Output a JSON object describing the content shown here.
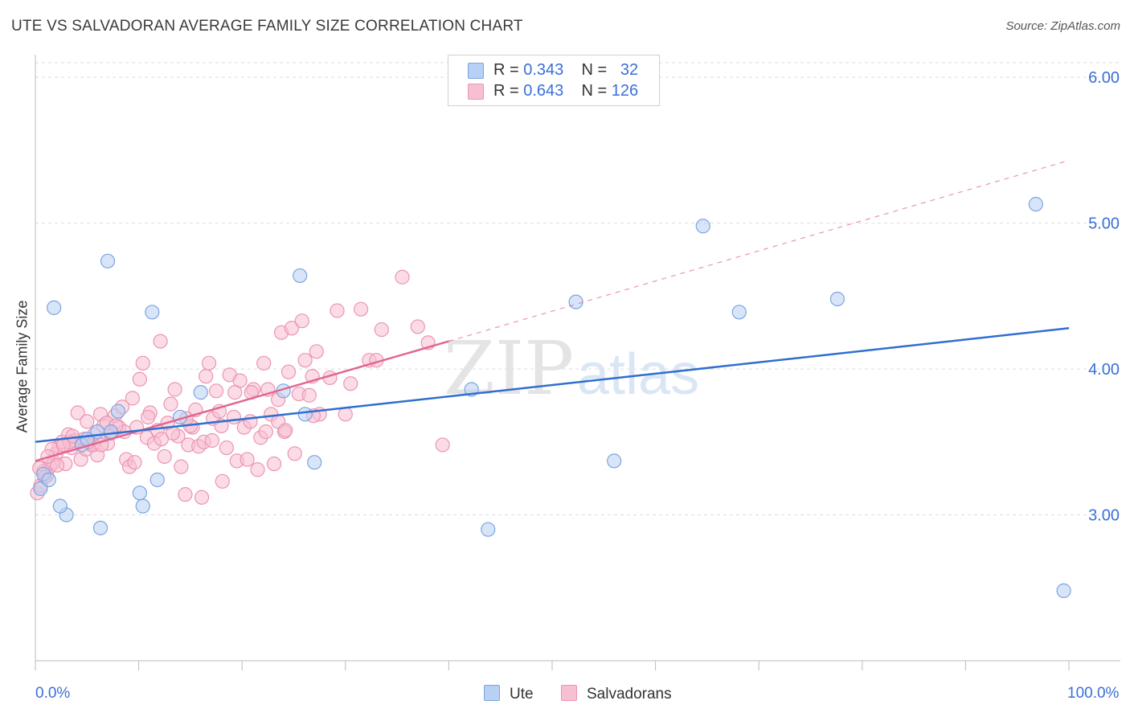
{
  "title": "UTE VS SALVADORAN AVERAGE FAMILY SIZE CORRELATION CHART",
  "source": "Source: ZipAtlas.com",
  "watermark": "ZIPatlas",
  "legend": {
    "rows": [
      {
        "r_label": "R =",
        "r_value": "0.343",
        "n_label": "N =",
        "n_value": "32"
      },
      {
        "r_label": "R =",
        "r_value": "0.643",
        "n_label": "N =",
        "n_value": "126"
      }
    ]
  },
  "colors": {
    "ute_fill": "#b8d0f4",
    "ute_stroke": "#7aa5e0",
    "ute_line": "#2f6fce",
    "salv_fill": "#f7c0d2",
    "salv_stroke": "#ec94b3",
    "salv_line": "#e0678f",
    "tick_label": "#3a6fd8",
    "grid": "#dddddd"
  },
  "chart_data": {
    "type": "scatter",
    "title": "UTE VS SALVADORAN AVERAGE FAMILY SIZE CORRELATION CHART",
    "xlabel": "",
    "ylabel": "Average Family Size",
    "x_tick_labels": [
      "0.0%",
      "100.0%"
    ],
    "y_ticks": [
      3.0,
      4.0,
      5.0,
      6.0
    ],
    "y_tick_labels": [
      "3.00",
      "4.00",
      "5.00",
      "6.00"
    ],
    "xlim": [
      0,
      100
    ],
    "ylim": [
      2.0,
      6.1
    ],
    "legend_placement": "top-center",
    "series": [
      {
        "name": "Ute",
        "trend": {
          "x": [
            0,
            100
          ],
          "y": [
            3.5,
            4.28
          ]
        },
        "points": [
          [
            1.8,
            4.42
          ],
          [
            7,
            4.74
          ],
          [
            11.3,
            4.39
          ],
          [
            25.6,
            4.64
          ],
          [
            3,
            3.0
          ],
          [
            2.4,
            3.06
          ],
          [
            6.3,
            2.91
          ],
          [
            10.4,
            3.06
          ],
          [
            10.1,
            3.15
          ],
          [
            11.8,
            3.24
          ],
          [
            7.3,
            3.57
          ],
          [
            6,
            3.57
          ],
          [
            8,
            3.71
          ],
          [
            14,
            3.67
          ],
          [
            16,
            3.84
          ],
          [
            24,
            3.85
          ],
          [
            26.1,
            3.69
          ],
          [
            27,
            3.36
          ],
          [
            42.2,
            3.86
          ],
          [
            43.8,
            2.9
          ],
          [
            52.3,
            4.46
          ],
          [
            56,
            3.37
          ],
          [
            64.6,
            4.98
          ],
          [
            68.1,
            4.39
          ],
          [
            77.6,
            4.48
          ],
          [
            96.8,
            5.13
          ],
          [
            99.5,
            2.48
          ],
          [
            0.5,
            3.18
          ],
          [
            0.8,
            3.28
          ],
          [
            1.3,
            3.24
          ],
          [
            4.5,
            3.48
          ],
          [
            5,
            3.52
          ]
        ]
      },
      {
        "name": "Salvadorans",
        "trend": {
          "x": [
            0,
            40
          ],
          "y": [
            3.37,
            4.19
          ]
        },
        "trend_ext": {
          "x": [
            40,
            100
          ],
          "y": [
            4.19,
            5.43
          ]
        },
        "points": [
          [
            0.2,
            3.15
          ],
          [
            0.5,
            3.2
          ],
          [
            0.8,
            3.3
          ],
          [
            1.1,
            3.27
          ],
          [
            1.4,
            3.33
          ],
          [
            1.8,
            3.36
          ],
          [
            2,
            3.42
          ],
          [
            2.3,
            3.47
          ],
          [
            2.6,
            3.5
          ],
          [
            2.9,
            3.35
          ],
          [
            3.2,
            3.55
          ],
          [
            3.5,
            3.46
          ],
          [
            3.8,
            3.51
          ],
          [
            4.1,
            3.7
          ],
          [
            4.4,
            3.38
          ],
          [
            4.7,
            3.52
          ],
          [
            5,
            3.64
          ],
          [
            5.4,
            3.48
          ],
          [
            5.7,
            3.55
          ],
          [
            6,
            3.41
          ],
          [
            6.3,
            3.69
          ],
          [
            6.6,
            3.61
          ],
          [
            7,
            3.49
          ],
          [
            7.3,
            3.56
          ],
          [
            7.7,
            3.68
          ],
          [
            8.1,
            3.6
          ],
          [
            8.4,
            3.74
          ],
          [
            8.8,
            3.38
          ],
          [
            9.1,
            3.33
          ],
          [
            9.4,
            3.8
          ],
          [
            9.8,
            3.6
          ],
          [
            10.1,
            3.93
          ],
          [
            10.4,
            4.04
          ],
          [
            10.8,
            3.53
          ],
          [
            11.1,
            3.7
          ],
          [
            11.5,
            3.49
          ],
          [
            11.8,
            3.58
          ],
          [
            12.1,
            4.19
          ],
          [
            12.5,
            3.4
          ],
          [
            12.8,
            3.63
          ],
          [
            13.1,
            3.76
          ],
          [
            13.5,
            3.86
          ],
          [
            13.8,
            3.54
          ],
          [
            14.1,
            3.33
          ],
          [
            14.5,
            3.14
          ],
          [
            14.8,
            3.48
          ],
          [
            15.2,
            3.6
          ],
          [
            15.5,
            3.72
          ],
          [
            15.8,
            3.47
          ],
          [
            16.1,
            3.12
          ],
          [
            16.5,
            3.95
          ],
          [
            16.8,
            4.04
          ],
          [
            17.2,
            3.66
          ],
          [
            17.5,
            3.85
          ],
          [
            17.8,
            3.71
          ],
          [
            18.1,
            3.23
          ],
          [
            18.5,
            3.46
          ],
          [
            18.8,
            3.96
          ],
          [
            19.2,
            3.67
          ],
          [
            19.5,
            3.37
          ],
          [
            19.8,
            3.92
          ],
          [
            20.2,
            3.6
          ],
          [
            20.5,
            3.38
          ],
          [
            20.8,
            3.64
          ],
          [
            21.1,
            3.86
          ],
          [
            21.5,
            3.31
          ],
          [
            21.8,
            3.53
          ],
          [
            22.1,
            4.04
          ],
          [
            22.5,
            3.86
          ],
          [
            22.8,
            3.69
          ],
          [
            23.1,
            3.35
          ],
          [
            23.5,
            3.79
          ],
          [
            23.8,
            4.25
          ],
          [
            24.1,
            3.57
          ],
          [
            24.5,
            3.98
          ],
          [
            24.8,
            4.28
          ],
          [
            25.1,
            3.42
          ],
          [
            25.5,
            3.83
          ],
          [
            25.8,
            4.33
          ],
          [
            26.1,
            4.06
          ],
          [
            26.5,
            3.82
          ],
          [
            26.8,
            3.95
          ],
          [
            27.2,
            4.12
          ],
          [
            27.5,
            3.69
          ],
          [
            28.5,
            3.94
          ],
          [
            29.2,
            4.4
          ],
          [
            30,
            3.69
          ],
          [
            30.5,
            3.9
          ],
          [
            31.5,
            4.41
          ],
          [
            32.3,
            4.06
          ],
          [
            33,
            4.06
          ],
          [
            33.5,
            4.27
          ],
          [
            35.5,
            4.63
          ],
          [
            37,
            4.29
          ],
          [
            38,
            4.18
          ],
          [
            39.4,
            3.48
          ],
          [
            0.4,
            3.32
          ],
          [
            0.9,
            3.26
          ],
          [
            1.6,
            3.45
          ],
          [
            2.1,
            3.34
          ],
          [
            3.3,
            3.5
          ],
          [
            4.9,
            3.45
          ],
          [
            5.6,
            3.48
          ],
          [
            6.9,
            3.63
          ],
          [
            8.6,
            3.57
          ],
          [
            10.9,
            3.67
          ],
          [
            13.3,
            3.56
          ],
          [
            15,
            3.61
          ],
          [
            16.3,
            3.5
          ],
          [
            18,
            3.61
          ],
          [
            19.3,
            3.84
          ],
          [
            20.9,
            3.84
          ],
          [
            22.3,
            3.57
          ],
          [
            23.5,
            3.64
          ],
          [
            24.2,
            3.58
          ],
          [
            26.9,
            3.68
          ],
          [
            12.2,
            3.52
          ],
          [
            9.6,
            3.36
          ],
          [
            7.8,
            3.61
          ],
          [
            6.4,
            3.48
          ],
          [
            5.1,
            3.5
          ],
          [
            3.6,
            3.54
          ],
          [
            2.7,
            3.48
          ],
          [
            1.2,
            3.4
          ],
          [
            14.6,
            3.66
          ],
          [
            17.1,
            3.51
          ]
        ]
      }
    ]
  },
  "bottom_legend": {
    "ute": "Ute",
    "salvadorans": "Salvadorans"
  }
}
